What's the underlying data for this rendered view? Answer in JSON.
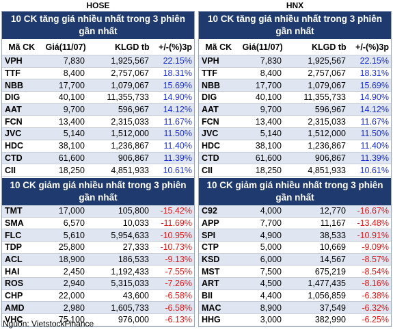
{
  "exchanges": {
    "left": "HOSE",
    "right": "HNX"
  },
  "up_title": "10 CK tăng giá nhiều nhất trong 3 phiên gần nhất",
  "down_title": "10 CK giảm giá nhiều nhất trong 3 phiên gần nhất",
  "columns": [
    "Mã CK",
    "Giá(11/07)",
    "KLGD tb",
    "+/-(%)3p"
  ],
  "hose_up": [
    [
      "VPH",
      "7,830",
      "1,925,567",
      "22.15%"
    ],
    [
      "TTF",
      "8,400",
      "2,757,067",
      "18.31%"
    ],
    [
      "NBB",
      "17,700",
      "1,079,067",
      "15.69%"
    ],
    [
      "DIG",
      "40,100",
      "11,355,733",
      "14.90%"
    ],
    [
      "AAT",
      "9,700",
      "596,967",
      "14.12%"
    ],
    [
      "FCN",
      "13,400",
      "2,315,033",
      "11.67%"
    ],
    [
      "JVC",
      "5,140",
      "1,512,000",
      "11.50%"
    ],
    [
      "HDC",
      "38,100",
      "1,236,867",
      "11.40%"
    ],
    [
      "CTD",
      "61,600",
      "906,867",
      "11.39%"
    ],
    [
      "CII",
      "18,250",
      "4,851,933",
      "10.61%"
    ]
  ],
  "hnx_up": [
    [
      "VPH",
      "7,830",
      "1,925,567",
      "22.15%"
    ],
    [
      "TTF",
      "8,400",
      "2,757,067",
      "18.31%"
    ],
    [
      "NBB",
      "17,700",
      "1,079,067",
      "15.69%"
    ],
    [
      "DIG",
      "40,100",
      "11,355,733",
      "14.90%"
    ],
    [
      "AAT",
      "9,700",
      "596,967",
      "14.12%"
    ],
    [
      "FCN",
      "13,400",
      "2,315,033",
      "11.67%"
    ],
    [
      "JVC",
      "5,140",
      "1,512,000",
      "11.50%"
    ],
    [
      "HDC",
      "38,100",
      "1,236,867",
      "11.40%"
    ],
    [
      "CTD",
      "61,600",
      "906,867",
      "11.39%"
    ],
    [
      "CII",
      "18,250",
      "4,851,933",
      "10.61%"
    ]
  ],
  "hose_down": [
    [
      "TMT",
      "17,000",
      "105,800",
      "-15.42%"
    ],
    [
      "SMA",
      "6,570",
      "10,033",
      "-11.69%"
    ],
    [
      "FLC",
      "5,610",
      "5,954,633",
      "-10.95%"
    ],
    [
      "TDP",
      "25,800",
      "27,333",
      "-10.73%"
    ],
    [
      "ACL",
      "18,900",
      "186,533",
      "-9.13%"
    ],
    [
      "HAI",
      "2,450",
      "1,192,433",
      "-7.55%"
    ],
    [
      "ROS",
      "2,940",
      "5,315,033",
      "-7.26%"
    ],
    [
      "CHP",
      "22,000",
      "43,600",
      "-6.58%"
    ],
    [
      "AMD",
      "2,980",
      "1,605,733",
      "-6.58%"
    ],
    [
      "VHC",
      "75,100",
      "976,000",
      "-6.13%"
    ]
  ],
  "hnx_down": [
    [
      "C92",
      "4,000",
      "12,770",
      "-16.67%"
    ],
    [
      "APP",
      "7,700",
      "11,167",
      "-13.48%"
    ],
    [
      "SPI",
      "4,900",
      "38,533",
      "-10.91%"
    ],
    [
      "CTP",
      "5,000",
      "10,669",
      "-9.09%"
    ],
    [
      "KSD",
      "6,000",
      "14,567",
      "-8.57%"
    ],
    [
      "MST",
      "7,500",
      "675,219",
      "-8.54%"
    ],
    [
      "ART",
      "4,500",
      "1,477,435",
      "-8.16%"
    ],
    [
      "BII",
      "4,400",
      "1,056,859",
      "-6.38%"
    ],
    [
      "MAC",
      "8,900",
      "37,549",
      "-6.32%"
    ],
    [
      "HHG",
      "3,000",
      "382,990",
      "-6.25%"
    ]
  ],
  "source": "Nguồn: VietstockFinance",
  "colors": {
    "header_bg": "#1f3a6e",
    "up": "#1a2fd6",
    "down": "#e01616",
    "row_alt": "#dfe5f1"
  }
}
